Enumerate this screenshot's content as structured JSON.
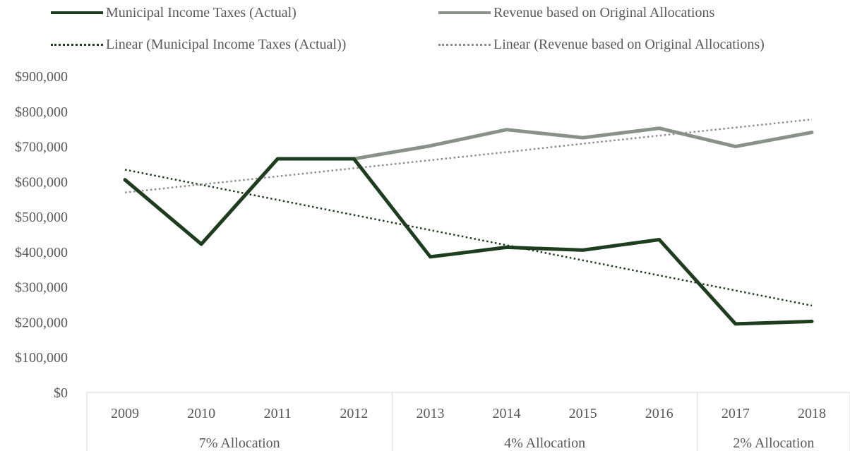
{
  "chart_data": {
    "type": "line",
    "categories": [
      "2009",
      "2010",
      "2011",
      "2012",
      "2013",
      "2014",
      "2015",
      "2016",
      "2017",
      "2018"
    ],
    "groups": [
      {
        "label": "7% Allocation",
        "span": [
          0,
          3
        ]
      },
      {
        "label": "4% Allocation",
        "span": [
          4,
          7
        ]
      },
      {
        "label": "2% Allocation",
        "span": [
          8,
          9
        ]
      }
    ],
    "series": [
      {
        "name": "Municipal Income Taxes (Actual)",
        "color": "#1e3d1e",
        "style": "solid",
        "values": [
          605000,
          422000,
          665000,
          665000,
          386000,
          413000,
          405000,
          435000,
          195000,
          202000
        ]
      },
      {
        "name": "Revenue based on Original Allocations",
        "color": "#889289",
        "style": "solid",
        "values": [
          605000,
          422000,
          665000,
          665000,
          702000,
          748000,
          725000,
          752000,
          700000,
          740000
        ]
      },
      {
        "name": "Linear (Municipal Income Taxes (Actual))",
        "color": "#1e3d1e",
        "style": "dotted",
        "values": [
          634000,
          591000,
          548000,
          505000,
          462000,
          419000,
          376000,
          333000,
          290000,
          247000
        ]
      },
      {
        "name": "Linear (Revenue based on Original Allocations)",
        "color": "#8e8e8e",
        "style": "dotted",
        "values": [
          569000,
          592000,
          615000,
          638000,
          661000,
          684000,
          708000,
          731000,
          754000,
          777000
        ]
      }
    ],
    "ylim": [
      0,
      900000
    ],
    "yticks": [
      "$0",
      "$100,000",
      "$200,000",
      "$300,000",
      "$400,000",
      "$500,000",
      "$600,000",
      "$700,000",
      "$800,000",
      "$900,000"
    ],
    "grid": false,
    "legend_position": "top"
  }
}
